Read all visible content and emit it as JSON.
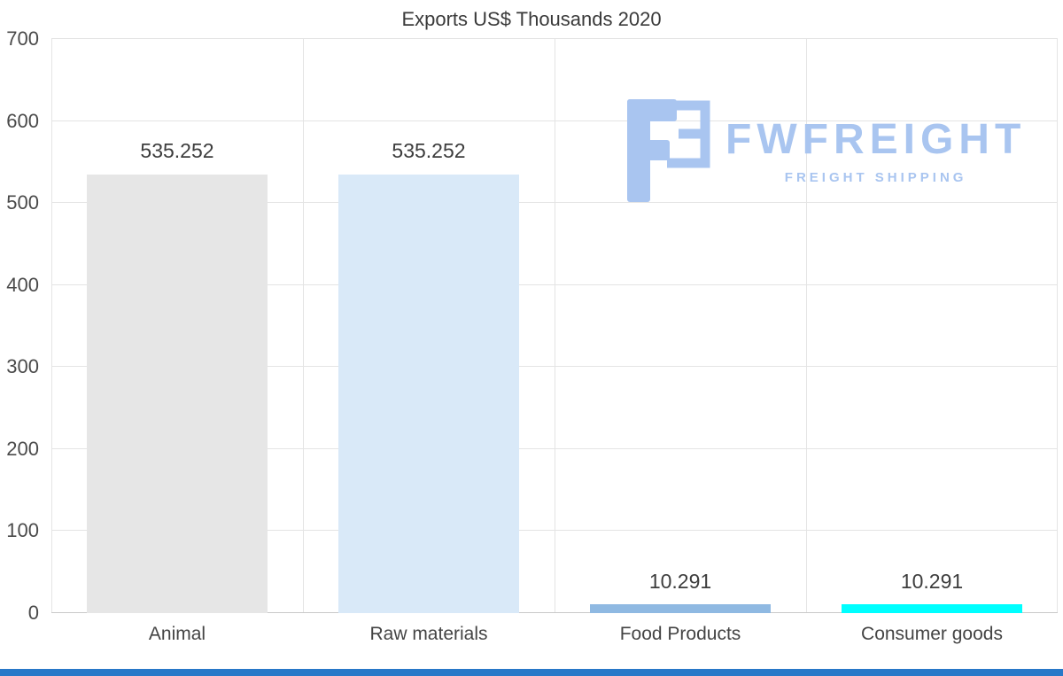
{
  "page": {
    "background": "#ffffff",
    "footer_bar_color": "#2878c8"
  },
  "chart_data": {
    "type": "bar",
    "title": "Exports US$ Thousands 2020",
    "categories": [
      "Animal",
      "Raw materials",
      "Food Products",
      "Consumer goods"
    ],
    "values": [
      535.252,
      535.252,
      10.291,
      10.291
    ],
    "value_labels": [
      "535.252",
      "535.252",
      "10.291",
      "10.291"
    ],
    "bar_colors": [
      "#e6e6e6",
      "#d9e9f8",
      "#8fb9e2",
      "#00ffff"
    ],
    "xlabel": "",
    "ylabel": "",
    "ylim": [
      0,
      700
    ],
    "yticks": [
      0,
      100,
      200,
      300,
      400,
      500,
      600,
      700
    ],
    "grid": true,
    "legend": "none",
    "gridline_color": "#e4e4e4",
    "axis_text_color": "#4a4a4a"
  },
  "watermark": {
    "brand": "FWFREIGHT",
    "tagline": "FREIGHT SHIPPING",
    "color": "#a9c5f0",
    "logo_icon": "fwfreight-logo-icon"
  }
}
